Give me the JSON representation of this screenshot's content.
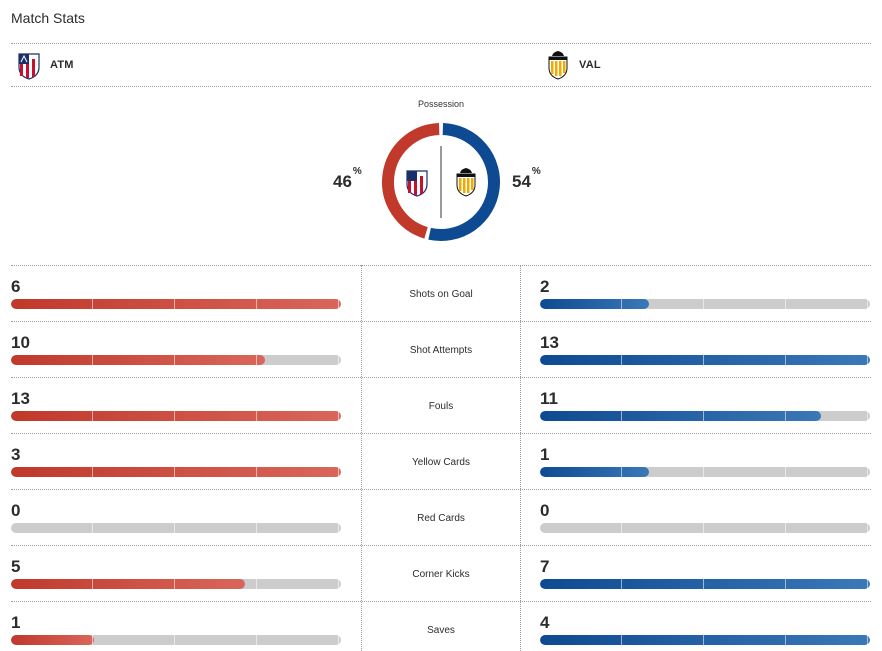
{
  "header": {
    "title": "Match Stats"
  },
  "teams": {
    "home": {
      "abbr": "ATM",
      "color": "#c0392b"
    },
    "away": {
      "abbr": "VAL",
      "color": "#0e4a92"
    }
  },
  "possession": {
    "label": "Possession",
    "home": 46,
    "away": 54,
    "home_text": "46",
    "away_text": "54",
    "unit": "%"
  },
  "stats": [
    {
      "label": "Shots on Goal",
      "home": "6",
      "away": "2",
      "home_fill": 1.0,
      "away_fill": 0.33
    },
    {
      "label": "Shot Attempts",
      "home": "10",
      "away": "13",
      "home_fill": 0.77,
      "away_fill": 1.0
    },
    {
      "label": "Fouls",
      "home": "13",
      "away": "11",
      "home_fill": 1.0,
      "away_fill": 0.85
    },
    {
      "label": "Yellow Cards",
      "home": "3",
      "away": "1",
      "home_fill": 1.0,
      "away_fill": 0.33
    },
    {
      "label": "Red Cards",
      "home": "0",
      "away": "0",
      "home_fill": 0.0,
      "away_fill": 0.0
    },
    {
      "label": "Corner Kicks",
      "home": "5",
      "away": "7",
      "home_fill": 0.71,
      "away_fill": 1.0
    },
    {
      "label": "Saves",
      "home": "1",
      "away": "4",
      "home_fill": 0.25,
      "away_fill": 1.0
    }
  ]
}
